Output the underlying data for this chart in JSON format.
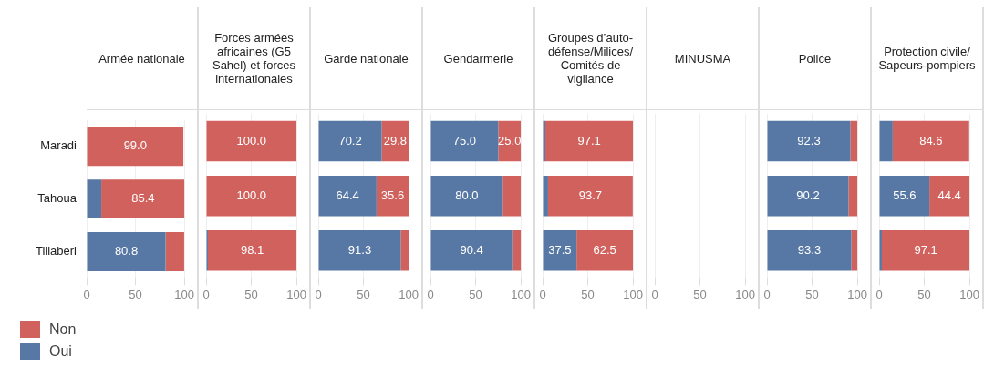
{
  "chart_data": [
    {
      "type": "bar",
      "orientation": "horizontal",
      "stacked": true,
      "title": "Armée nationale",
      "categories": [
        "Maradi",
        "Tahoua",
        "Tillaberi"
      ],
      "xlim": [
        0,
        100
      ],
      "xticks": [
        0,
        50,
        100
      ],
      "grid": "x",
      "legend": "bottom left",
      "series": [
        {
          "name": "Oui",
          "color": "#5778a4",
          "values": [
            null,
            15,
            80.8
          ],
          "value_labels": [
            null,
            null,
            "80.8"
          ]
        },
        {
          "name": "Non",
          "color": "#d1615d",
          "values": [
            99.0,
            85.4,
            19
          ],
          "value_labels": [
            "99.0",
            "85.4",
            null
          ]
        }
      ]
    },
    {
      "type": "bar",
      "orientation": "horizontal",
      "stacked": true,
      "title": "Forces armées africaines (G5 Sahel) et forces internationales",
      "categories": [
        null,
        null,
        null
      ],
      "xlim": [
        0,
        100
      ],
      "xticks": [
        0,
        50,
        100
      ],
      "grid": "x",
      "tick_labels": "x",
      "series": [
        {
          "color": "#5778a4",
          "values": [
            0,
            0,
            2
          ],
          "value_labels": [
            null,
            null,
            null
          ]
        },
        {
          "color": "#d1615d",
          "values": [
            100.0,
            100.0,
            98.1
          ],
          "value_labels": [
            "100.0",
            "100.0",
            "98.1"
          ]
        }
      ]
    },
    {
      "type": "bar",
      "orientation": "horizontal",
      "stacked": true,
      "title": "Garde nationale",
      "categories": [
        null,
        null,
        null
      ],
      "xlim": [
        0,
        100
      ],
      "xticks": [
        0,
        50,
        100
      ],
      "grid": "x",
      "tick_labels": "x",
      "series": [
        {
          "color": "#5778a4",
          "values": [
            70.2,
            64.4,
            91.3
          ],
          "value_labels": [
            "70.2",
            "64.4",
            "91.3"
          ]
        },
        {
          "color": "#d1615d",
          "values": [
            29.8,
            35.6,
            9
          ],
          "value_labels": [
            "29.8",
            "35.6",
            null
          ]
        }
      ]
    },
    {
      "type": "bar",
      "orientation": "horizontal",
      "stacked": true,
      "title": "Gendarmerie",
      "categories": [
        null,
        null,
        null
      ],
      "xlim": [
        0,
        100
      ],
      "xticks": [
        0,
        50,
        100
      ],
      "grid": "x",
      "tick_labels": "x",
      "series": [
        {
          "color": "#5778a4",
          "values": [
            75.0,
            80.0,
            90.4
          ],
          "value_labels": [
            "75.0",
            "80.0",
            "90.4"
          ]
        },
        {
          "color": "#d1615d",
          "values": [
            25.0,
            20,
            10
          ],
          "value_labels": [
            "25.0",
            null,
            null
          ]
        }
      ]
    },
    {
      "type": "bar",
      "orientation": "horizontal",
      "stacked": true,
      "title": "Groupes d’auto-défense/Milices/ Comités de vigilance",
      "categories": [
        null,
        null,
        null
      ],
      "xlim": [
        0,
        100
      ],
      "xticks": [
        0,
        50,
        100
      ],
      "grid": "x",
      "tick_labels": "x",
      "series": [
        {
          "color": "#5778a4",
          "values": [
            3,
            6,
            37.5
          ],
          "value_labels": [
            null,
            null,
            "37.5"
          ]
        },
        {
          "color": "#d1615d",
          "values": [
            97.1,
            93.7,
            62.5
          ],
          "value_labels": [
            "97.1",
            "93.7",
            "62.5"
          ]
        }
      ]
    },
    {
      "type": "bar",
      "orientation": "horizontal",
      "stacked": true,
      "title": "MINUSMA",
      "categories": [
        null,
        null,
        null
      ],
      "xlim": [
        0,
        100
      ],
      "xticks": [
        0,
        50,
        100
      ],
      "grid": "x",
      "tick_labels": "x",
      "series": [
        {
          "color": "#5778a4",
          "values": [
            null,
            null,
            null
          ]
        },
        {
          "color": "#d1615d",
          "values": [
            null,
            null,
            null
          ]
        }
      ]
    },
    {
      "type": "bar",
      "orientation": "horizontal",
      "stacked": true,
      "title": "Police",
      "categories": [
        null,
        null,
        null
      ],
      "xlim": [
        0,
        100
      ],
      "xticks": [
        0,
        50,
        100
      ],
      "grid": "x",
      "tick_labels": "x",
      "series": [
        {
          "color": "#5778a4",
          "values": [
            92.3,
            90.2,
            93.3
          ],
          "value_labels": [
            "92.3",
            "90.2",
            "93.3"
          ]
        },
        {
          "color": "#d1615d",
          "values": [
            8,
            10,
            7
          ],
          "value_labels": [
            null,
            null,
            null
          ]
        }
      ]
    },
    {
      "type": "bar",
      "orientation": "horizontal",
      "stacked": true,
      "title": "Protection civile/ Sapeurs-pompiers",
      "categories": [
        null,
        null,
        null
      ],
      "xlim": [
        0,
        100
      ],
      "xticks": [
        0,
        50,
        100
      ],
      "grid": "x",
      "tick_labels": "x",
      "series": [
        {
          "color": "#5778a4",
          "values": [
            15,
            55.6,
            3
          ],
          "value_labels": [
            null,
            "55.6",
            null
          ]
        },
        {
          "color": "#d1615d",
          "values": [
            84.6,
            44.4,
            97.1
          ],
          "value_labels": [
            "84.6",
            "44.4",
            "97.1"
          ]
        }
      ]
    }
  ]
}
